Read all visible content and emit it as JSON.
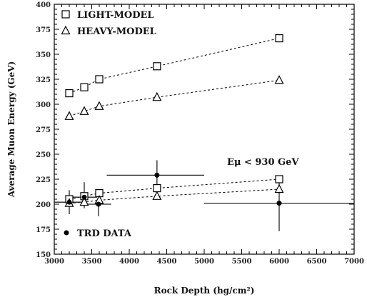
{
  "chart_data": {
    "type": "scatter",
    "xlabel": "Rock Depth (hg/cm²)",
    "ylabel": "Average Muon Energy (GeV)",
    "xlim": [
      3000,
      7000
    ],
    "ylim": [
      150,
      400
    ],
    "x_ticks": [
      3000,
      3500,
      4000,
      4500,
      5000,
      5500,
      6000,
      6500,
      7000
    ],
    "y_ticks": [
      150,
      175,
      200,
      225,
      250,
      275,
      300,
      325,
      350,
      375,
      400
    ],
    "grid": false,
    "legend_position": "top-left",
    "annotations": [
      "Eμ < 930 GeV"
    ],
    "series": [
      {
        "name": "LIGHT-MODEL",
        "marker": "square",
        "line": "dashed",
        "x": [
          3200,
          3400,
          3600,
          4370,
          6000
        ],
        "y": [
          311,
          317,
          325,
          338,
          366
        ]
      },
      {
        "name": "HEAVY-MODEL",
        "marker": "triangle",
        "line": "dashed",
        "x": [
          3200,
          3400,
          3600,
          4370,
          6000
        ],
        "y": [
          288,
          293,
          298,
          307,
          324
        ]
      },
      {
        "name": "LIGHT-MODEL (Eμ < 930 GeV)",
        "marker": "square",
        "line": "dashed",
        "x": [
          3200,
          3400,
          3600,
          4370,
          6000
        ],
        "y": [
          205,
          208,
          211,
          216,
          225
        ]
      },
      {
        "name": "HEAVY-MODEL (Eμ < 930 GeV)",
        "marker": "triangle",
        "line": "dashed",
        "x": [
          3200,
          3400,
          3600,
          4370,
          6000
        ],
        "y": [
          201,
          202,
          204,
          208,
          215
        ]
      },
      {
        "name": "TRD DATA",
        "marker": "circle",
        "line": "none",
        "points": [
          {
            "x": 3200,
            "y": 202,
            "xerr_low": 3000,
            "xerr_high": 3400,
            "yerr_low": 190,
            "yerr_high": 214
          },
          {
            "x": 3400,
            "y": 207,
            "xerr_low": 3230,
            "xerr_high": 3570,
            "yerr_low": 196,
            "yerr_high": 222
          },
          {
            "x": 3590,
            "y": 200,
            "xerr_low": 3410,
            "xerr_high": 3760,
            "yerr_low": 188,
            "yerr_high": 212
          },
          {
            "x": 4370,
            "y": 229,
            "xerr_low": 3700,
            "xerr_high": 5000,
            "yerr_low": 218,
            "yerr_high": 244
          },
          {
            "x": 6000,
            "y": 201,
            "xerr_low": 5000,
            "xerr_high": 7000,
            "yerr_low": 173,
            "yerr_high": 228
          }
        ]
      }
    ],
    "legend": [
      {
        "marker": "square",
        "label": "LIGHT-MODEL"
      },
      {
        "marker": "triangle",
        "label": "HEAVY-MODEL"
      }
    ],
    "data_legend": {
      "marker": "circle",
      "label": "TRD DATA"
    }
  }
}
